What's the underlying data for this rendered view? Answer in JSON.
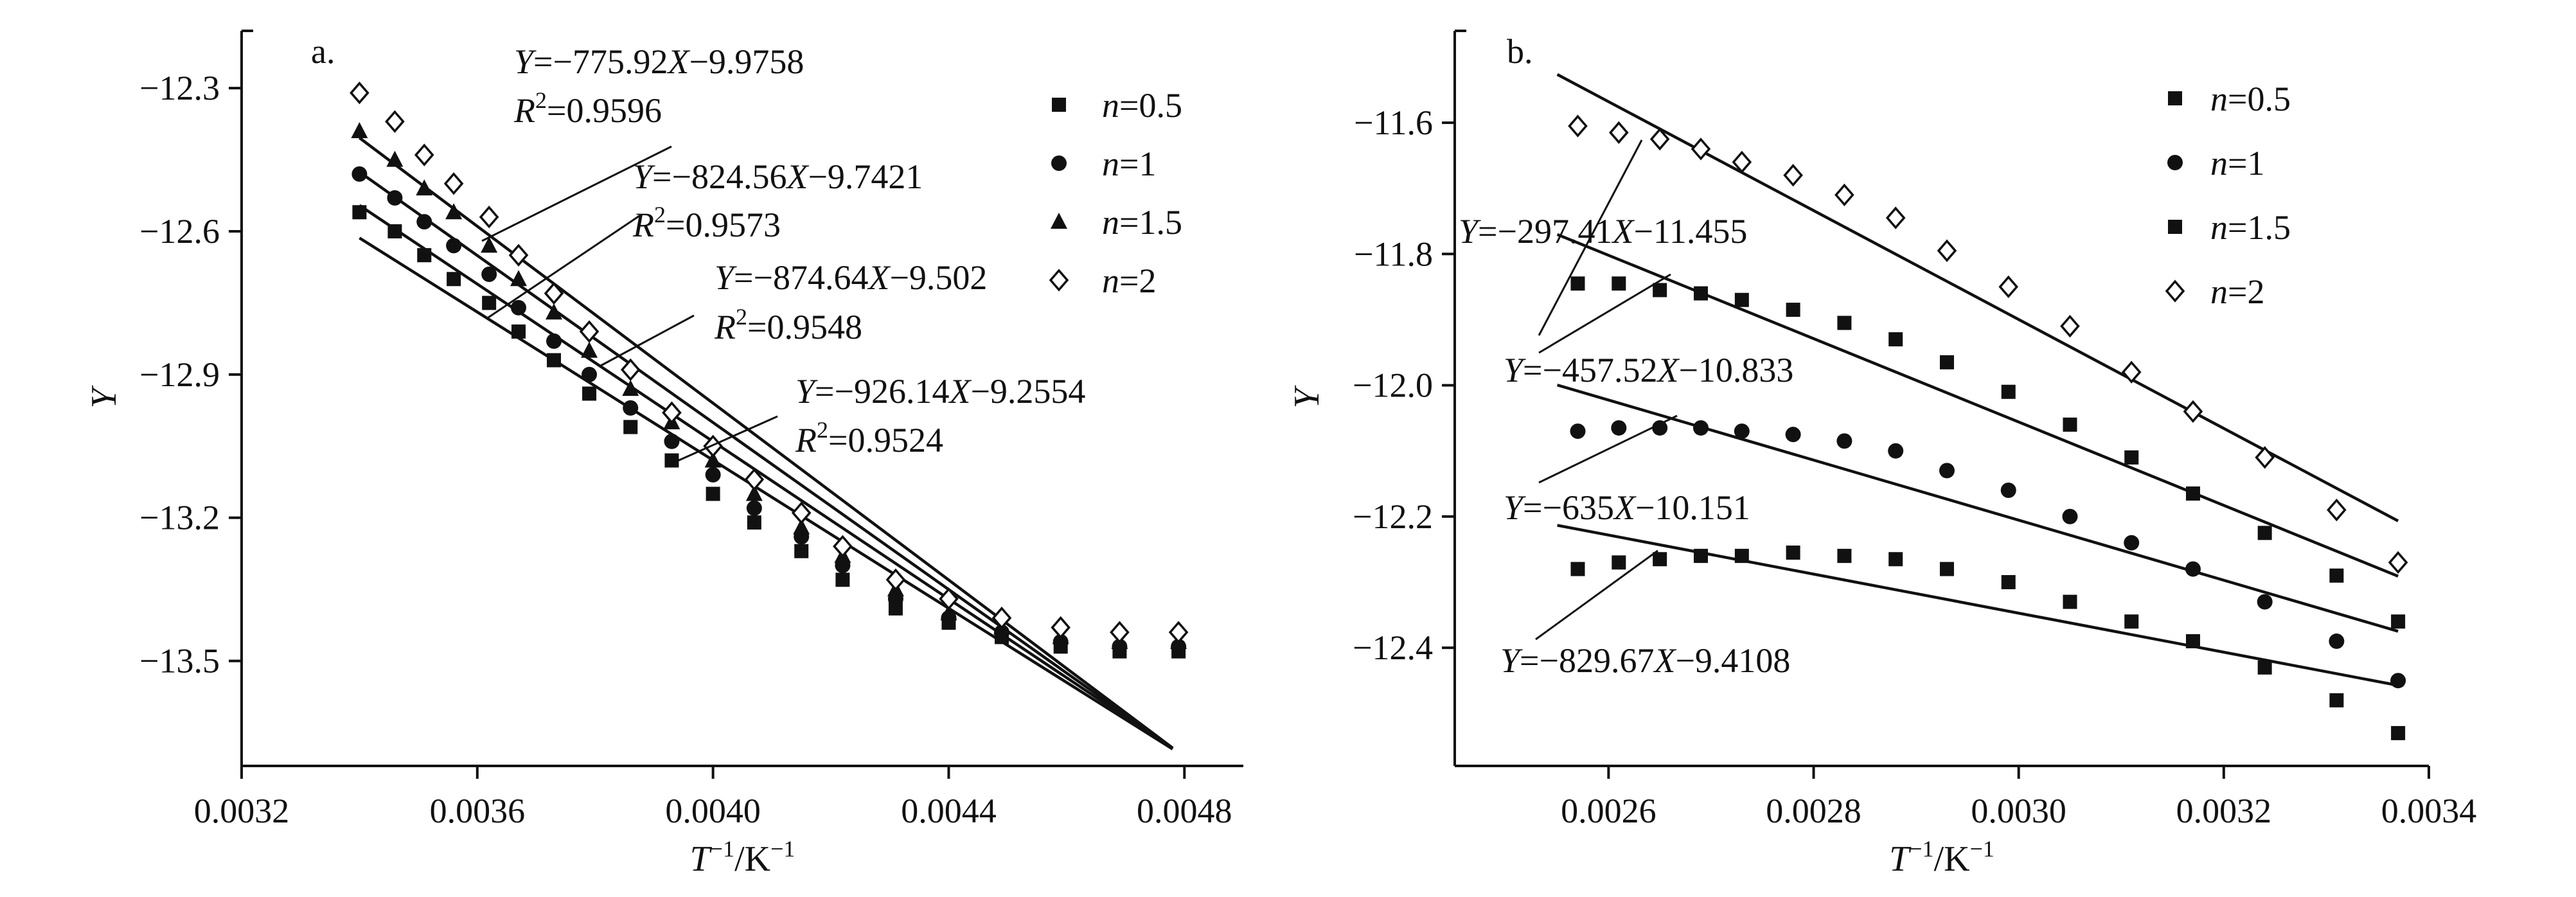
{
  "chart_data": [
    {
      "type": "scatter",
      "panel_label": "a.",
      "xlabel": {
        "base": "T",
        "sup": "−1",
        "unit": "/K",
        "unit_sup": "−1"
      },
      "ylabel": "Y",
      "xlim": [
        0.0032,
        0.0049
      ],
      "ylim": [
        -13.72,
        -12.18
      ],
      "xticks": [
        0.0032,
        0.0036,
        0.004,
        0.0044,
        0.0048
      ],
      "xtick_labels": [
        "0.0032",
        "0.0036",
        "0.0040",
        "0.0044",
        "0.0048"
      ],
      "yticks": [
        -12.3,
        -12.6,
        -12.9,
        -13.2,
        -13.5
      ],
      "ytick_labels": [
        "−12.3",
        "−12.6",
        "−12.9",
        "−13.2",
        "−13.5"
      ],
      "legend_position": "top-right",
      "x": [
        0.0034,
        0.00346,
        0.00351,
        0.00356,
        0.00362,
        0.00367,
        0.00373,
        0.00379,
        0.00386,
        0.00393,
        0.004,
        0.00407,
        0.00415,
        0.00422,
        0.00431,
        0.0044,
        0.00449,
        0.00459,
        0.00469,
        0.00479
      ],
      "series": [
        {
          "name": "n=0.5",
          "marker": "square",
          "values": [
            -12.56,
            -12.6,
            -12.65,
            -12.7,
            -12.75,
            -12.81,
            -12.87,
            -12.94,
            -13.01,
            -13.08,
            -13.15,
            -13.21,
            -13.27,
            -13.33,
            -13.39,
            -13.42,
            -13.45,
            -13.47,
            -13.48,
            -13.48
          ],
          "fit": {
            "slope": -775.92,
            "intercept": -9.9758,
            "x_range": [
              0.0034,
              0.00478
            ]
          },
          "equation": {
            "y_var": "Y",
            "rhs": "=−775.92",
            "x_var": "X",
            "tail": "−9.9758"
          },
          "r_squared": {
            "label": "R",
            "sup": "2",
            "value": "=0.9596"
          }
        },
        {
          "name": "n=1",
          "marker": "circle",
          "values": [
            -12.48,
            -12.53,
            -12.58,
            -12.63,
            -12.69,
            -12.76,
            -12.83,
            -12.9,
            -12.97,
            -13.04,
            -13.11,
            -13.18,
            -13.24,
            -13.3,
            -13.37,
            -13.41,
            -13.44,
            -13.46,
            -13.47,
            -13.47
          ],
          "fit": {
            "slope": -824.56,
            "intercept": -9.7421,
            "x_range": [
              0.0034,
              0.00478
            ]
          },
          "equation": {
            "y_var": "Y",
            "rhs": "=−824.56",
            "x_var": "X",
            "tail": "−9.7421"
          },
          "r_squared": {
            "label": "R",
            "sup": "2",
            "value": "=0.9573"
          }
        },
        {
          "name": "n=1.5",
          "marker": "triangle",
          "values": [
            -12.39,
            -12.45,
            -12.51,
            -12.56,
            -12.63,
            -12.7,
            -12.77,
            -12.85,
            -12.93,
            -13.0,
            -13.08,
            -13.15,
            -13.22,
            -13.28,
            -13.35,
            -13.4,
            -13.43,
            -13.45,
            -13.46,
            -13.46
          ],
          "fit": {
            "slope": -874.64,
            "intercept": -9.502,
            "x_range": [
              0.0034,
              0.00478
            ]
          },
          "equation": {
            "y_var": "Y",
            "rhs": "=−874.64",
            "x_var": "X",
            "tail": "−9.502"
          },
          "r_squared": {
            "label": "R",
            "sup": "2",
            "value": "=0.9548"
          }
        },
        {
          "name": "n=2",
          "marker": "diamond",
          "values": [
            -12.31,
            -12.37,
            -12.44,
            -12.5,
            -12.57,
            -12.65,
            -12.73,
            -12.81,
            -12.89,
            -12.98,
            -13.05,
            -13.12,
            -13.19,
            -13.26,
            -13.33,
            -13.37,
            -13.41,
            -13.43,
            -13.44,
            -13.44
          ],
          "fit": {
            "slope": -926.14,
            "intercept": -9.2554,
            "x_range": [
              0.0034,
              0.00478
            ]
          },
          "equation": {
            "y_var": "Y",
            "rhs": "=−926.14",
            "x_var": "X",
            "tail": "−9.2554"
          },
          "r_squared": {
            "label": "R",
            "sup": "2",
            "value": "=0.9524"
          }
        }
      ]
    },
    {
      "type": "scatter",
      "panel_label": "b.",
      "xlabel": {
        "base": "T",
        "sup": "−1",
        "unit": "/K",
        "unit_sup": "−1"
      },
      "ylabel": "Y",
      "xlim": [
        0.00245,
        0.0034
      ],
      "ylim": [
        -12.58,
        -11.46
      ],
      "xticks": [
        0.0026,
        0.0028,
        0.003,
        0.0032,
        0.0034
      ],
      "xtick_labels": [
        "0.0026",
        "0.0028",
        "0.0030",
        "0.0032",
        "0.0034"
      ],
      "yticks": [
        -11.6,
        -11.8,
        -12.0,
        -12.2,
        -12.4
      ],
      "ytick_labels": [
        "−11.6",
        "−11.8",
        "−12.0",
        "−12.2",
        "−12.4"
      ],
      "legend_position": "top-right",
      "x": [
        0.00257,
        0.00261,
        0.00265,
        0.00269,
        0.00273,
        0.00278,
        0.00283,
        0.00288,
        0.00293,
        0.00299,
        0.00305,
        0.00311,
        0.00317,
        0.00324,
        0.00331,
        0.00337
      ],
      "series": [
        {
          "name": "n=0.5",
          "marker": "square",
          "values": [
            -12.28,
            -12.27,
            -12.265,
            -12.26,
            -12.26,
            -12.255,
            -12.26,
            -12.265,
            -12.28,
            -12.3,
            -12.33,
            -12.36,
            -12.39,
            -12.43,
            -12.48,
            -12.53
          ],
          "fit": {
            "slope": -297.41,
            "intercept": -11.455,
            "x_range": [
              0.00255,
              0.00337
            ]
          },
          "equation": {
            "y_var": "Y",
            "rhs": "=−297.41",
            "x_var": "X",
            "tail": "−11.455"
          }
        },
        {
          "name": "n=1",
          "marker": "circle",
          "values": [
            -12.07,
            -12.065,
            -12.065,
            -12.065,
            -12.07,
            -12.075,
            -12.085,
            -12.1,
            -12.13,
            -12.16,
            -12.2,
            -12.24,
            -12.28,
            -12.33,
            -12.39,
            -12.45
          ],
          "fit": {
            "slope": -457.52,
            "intercept": -10.833,
            "x_range": [
              0.00255,
              0.00337
            ]
          },
          "equation": {
            "y_var": "Y",
            "rhs": "=−457.52",
            "x_var": "X",
            "tail": "−10.833"
          }
        },
        {
          "name": "n=1.5",
          "marker": "square",
          "values": [
            -11.845,
            -11.845,
            -11.855,
            -11.86,
            -11.87,
            -11.885,
            -11.905,
            -11.93,
            -11.965,
            -12.01,
            -12.06,
            -12.11,
            -12.165,
            -12.225,
            -12.29,
            -12.36
          ],
          "fit": {
            "slope": -635,
            "intercept": -10.151,
            "x_range": [
              0.00255,
              0.00337
            ]
          },
          "equation": {
            "y_var": "Y",
            "rhs": "=−635",
            "x_var": "X",
            "tail": "−10.151"
          }
        },
        {
          "name": "n=2",
          "marker": "diamond",
          "values": [
            -11.605,
            -11.615,
            -11.625,
            -11.64,
            -11.66,
            -11.68,
            -11.71,
            -11.745,
            -11.795,
            -11.85,
            -11.91,
            -11.98,
            -12.04,
            -12.11,
            -12.19,
            -12.27
          ],
          "fit": {
            "slope": -829.67,
            "intercept": -9.4108,
            "x_range": [
              0.00255,
              0.00337
            ]
          },
          "equation": {
            "y_var": "Y",
            "rhs": "=−829.67",
            "x_var": "X",
            "tail": "−9.4108"
          }
        }
      ]
    }
  ]
}
